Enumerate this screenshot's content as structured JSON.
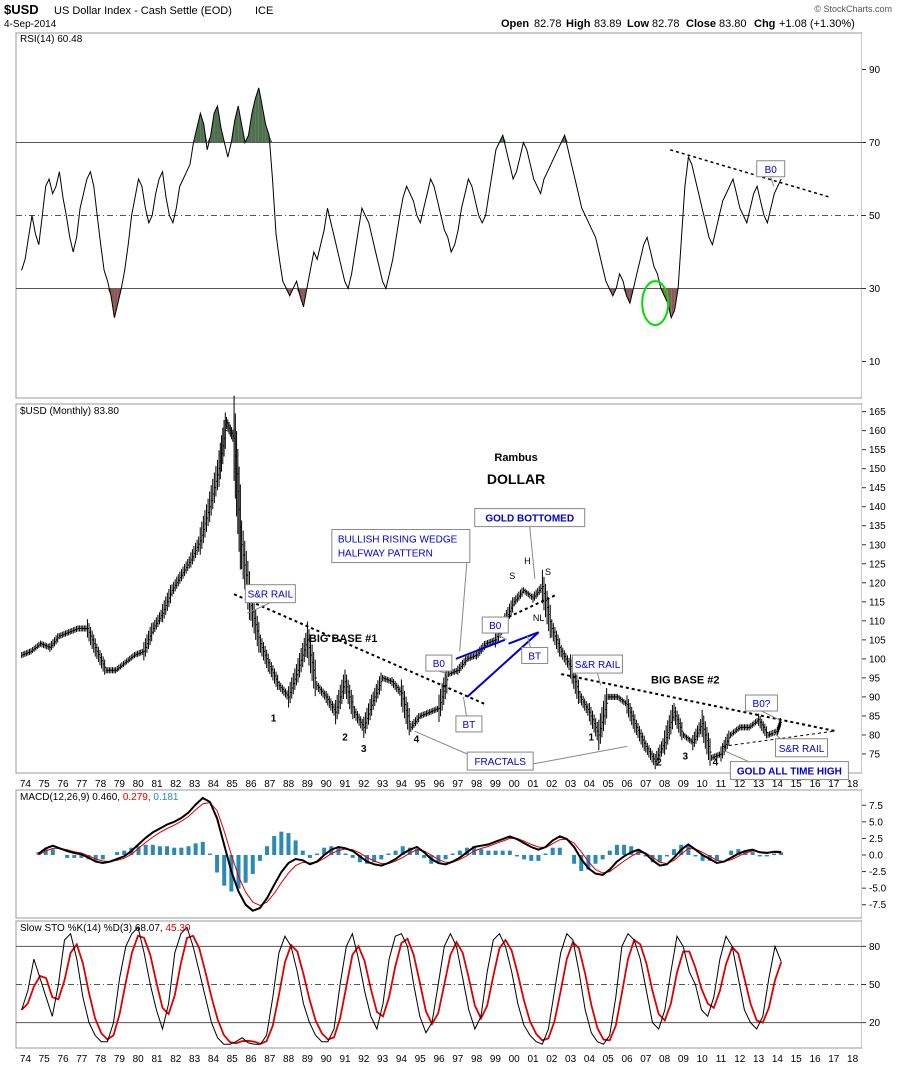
{
  "header": {
    "symbol": "$USD",
    "name": "US Dollar Index - Cash Settle (EOD)",
    "exchange": "ICE",
    "date": "4-Sep-2014",
    "open_label": "Open",
    "open": "82.78",
    "high_label": "High",
    "high": "83.89",
    "low_label": "Low",
    "low": "82.78",
    "close_label": "Close",
    "close": "83.80",
    "chg_label": "Chg",
    "chg": "+1.08 (+1.30%)",
    "watermark": "© StockCharts.com"
  },
  "colors": {
    "price": "#000000",
    "annotation_blue": "#0000cc",
    "rsi_overbought_fill": "#4f6f4f",
    "rsi_oversold_fill": "#8a5a5a",
    "macd_signal": "#dd0000",
    "macd_hist": "#2b89b5",
    "sto_d": "#dd0000",
    "highlight_circle": "#00dd00"
  },
  "chart_data": [
    {
      "type": "line",
      "title": "RSI(14) 60.48",
      "legend": "RSI(14) 60.48",
      "ylim": [
        0,
        100
      ],
      "yticks": [
        10,
        30,
        50,
        70,
        90
      ],
      "reference_lines": [
        30,
        50,
        70
      ],
      "x_start": 1974.3,
      "x_end": 2014.7,
      "values": [
        35,
        38,
        44,
        50,
        45,
        42,
        50,
        58,
        60,
        56,
        58,
        62,
        55,
        50,
        44,
        40,
        44,
        52,
        56,
        60,
        62,
        58,
        50,
        42,
        35,
        32,
        28,
        22,
        26,
        30,
        35,
        42,
        50,
        55,
        60,
        58,
        52,
        48,
        50,
        56,
        60,
        62,
        55,
        50,
        48,
        52,
        58,
        60,
        62,
        64,
        70,
        74,
        78,
        75,
        68,
        72,
        78,
        80,
        74,
        70,
        66,
        70,
        76,
        80,
        75,
        70,
        72,
        78,
        82,
        85,
        80,
        75,
        72,
        60,
        45,
        38,
        32,
        30,
        28,
        30,
        32,
        28,
        25,
        30,
        35,
        40,
        38,
        42,
        46,
        52,
        48,
        44,
        40,
        36,
        32,
        30,
        34,
        40,
        46,
        52,
        50,
        48,
        44,
        40,
        36,
        32,
        30,
        34,
        38,
        44,
        50,
        55,
        58,
        56,
        54,
        50,
        48,
        52,
        56,
        60,
        58,
        54,
        50,
        46,
        44,
        40,
        42,
        46,
        52,
        56,
        60,
        58,
        54,
        50,
        48,
        50,
        56,
        62,
        68,
        70,
        72,
        68,
        64,
        60,
        62,
        66,
        70,
        68,
        64,
        60,
        58,
        56,
        60,
        62,
        64,
        66,
        68,
        70,
        72,
        68,
        64,
        60,
        56,
        52,
        50,
        48,
        46,
        44,
        40,
        36,
        32,
        30,
        28,
        30,
        34,
        32,
        28,
        26,
        30,
        34,
        38,
        42,
        44,
        40,
        36,
        34,
        30,
        28,
        26,
        22,
        24,
        30,
        44,
        58,
        66,
        64,
        60,
        56,
        52,
        48,
        44,
        42,
        46,
        50,
        54,
        56,
        58,
        60,
        56,
        52,
        50,
        48,
        52,
        56,
        58,
        54,
        50,
        48,
        52,
        56,
        58,
        60
      ],
      "annotations": [
        "B0"
      ]
    },
    {
      "type": "line",
      "title": "$USD (Monthly) 83.80",
      "legend": "$USD (Monthly) 83.80",
      "ylim": [
        70,
        167
      ],
      "yticks": [
        75,
        80,
        85,
        90,
        95,
        100,
        105,
        110,
        115,
        120,
        125,
        130,
        135,
        140,
        145,
        150,
        155,
        160,
        165
      ],
      "x_categories": [
        "74",
        "75",
        "76",
        "77",
        "78",
        "79",
        "80",
        "81",
        "82",
        "83",
        "84",
        "85",
        "86",
        "87",
        "88",
        "89",
        "90",
        "91",
        "92",
        "93",
        "94",
        "95",
        "96",
        "97",
        "98",
        "99",
        "00",
        "01",
        "02",
        "03",
        "04",
        "05",
        "06",
        "07",
        "08",
        "09",
        "10",
        "11",
        "12",
        "13",
        "14",
        "15",
        "16",
        "17",
        "18"
      ],
      "series": [
        {
          "name": "$USD monthly close",
          "x": [
            1974.3,
            1974.8,
            1975.3,
            1975.8,
            1976.3,
            1976.8,
            1977.3,
            1977.8,
            1978.3,
            1978.8,
            1979.3,
            1979.8,
            1980.3,
            1980.8,
            1981.3,
            1981.8,
            1982.3,
            1982.8,
            1983.3,
            1983.8,
            1984.3,
            1984.8,
            1985.2,
            1985.6,
            1986.0,
            1986.5,
            1987.0,
            1987.5,
            1988.0,
            1988.5,
            1989.0,
            1989.5,
            1990.0,
            1990.5,
            1991.0,
            1991.5,
            1992.0,
            1992.5,
            1993.0,
            1993.5,
            1994.0,
            1994.5,
            1995.0,
            1995.5,
            1996.0,
            1996.5,
            1997.0,
            1997.5,
            1998.0,
            1998.5,
            1999.0,
            1999.5,
            2000.0,
            2000.5,
            2001.0,
            2001.5,
            2002.0,
            2002.5,
            2003.0,
            2003.5,
            2004.0,
            2004.5,
            2005.0,
            2005.5,
            2006.0,
            2006.5,
            2007.0,
            2007.5,
            2008.0,
            2008.5,
            2009.0,
            2009.5,
            2010.0,
            2010.5,
            2011.0,
            2011.5,
            2012.0,
            2012.5,
            2013.0,
            2013.5,
            2014.0,
            2014.5,
            2014.7
          ],
          "values": [
            101,
            102,
            104,
            103,
            106,
            107,
            108,
            108,
            102,
            97,
            97,
            99,
            101,
            102,
            108,
            112,
            118,
            122,
            126,
            131,
            140,
            150,
            162,
            158,
            130,
            114,
            104,
            98,
            93,
            90,
            97,
            105,
            93,
            90,
            86,
            94,
            86,
            82,
            89,
            95,
            94,
            91,
            82,
            85,
            86,
            87,
            96,
            97,
            100,
            101,
            104,
            105,
            110,
            115,
            118,
            116,
            119,
            108,
            102,
            98,
            90,
            86,
            80,
            90,
            90,
            88,
            82,
            77,
            73,
            78,
            86,
            80,
            78,
            83,
            74,
            75,
            80,
            82,
            82,
            84,
            80,
            81,
            83.8
          ]
        }
      ],
      "annotations": [
        {
          "text": "Rambus"
        },
        {
          "text": "DOLLAR"
        },
        {
          "text": "GOLD BOTTOMED"
        },
        {
          "text": "BULLISH RISING WEDGE"
        },
        {
          "text": "HALFWAY PATTERN"
        },
        {
          "text": "S&R RAIL"
        },
        {
          "text": "BIG BASE #1"
        },
        {
          "text": "B0"
        },
        {
          "text": "BT"
        },
        {
          "text": "NL"
        },
        {
          "text": "H"
        },
        {
          "text": "S"
        },
        {
          "text": "BIG BASE #2"
        },
        {
          "text": "B0?"
        },
        {
          "text": "FRACTALS"
        },
        {
          "text": "GOLD ALL TIME HIGH"
        },
        {
          "text": "1"
        },
        {
          "text": "2"
        },
        {
          "text": "3"
        },
        {
          "text": "4"
        }
      ]
    },
    {
      "type": "line",
      "title": "MACD(12,26,9)",
      "legend": "MACD(12,26,9) 0.460, 0.279, 0.181",
      "legend_parts": [
        "MACD(12,26,9)",
        "0.460,",
        "0.279,",
        "0.181"
      ],
      "ylim": [
        -9.5,
        9.8
      ],
      "yticks": [
        -7.5,
        -5.0,
        -2.5,
        0.0,
        2.5,
        5.0,
        7.5
      ],
      "ytick_labels": [
        "-7.5",
        "-5.0",
        "-2.5",
        "0.0",
        "2.5",
        "5.0",
        "7.5"
      ],
      "x_start": 1975.2,
      "x_end": 2014.7,
      "macd": [
        0.2,
        1.0,
        1.4,
        1.0,
        0.6,
        0.3,
        0.1,
        -0.4,
        -1.0,
        -1.2,
        -1.0,
        -0.6,
        -0.2,
        0.6,
        1.6,
        2.6,
        3.4,
        4.0,
        4.6,
        5.0,
        5.6,
        6.4,
        7.6,
        8.6,
        8.0,
        5.5,
        1.5,
        -2.5,
        -5.5,
        -7.5,
        -8.4,
        -8.0,
        -6.5,
        -4.5,
        -2.6,
        -1.2,
        -0.6,
        -0.8,
        -1.4,
        -1.0,
        0.0,
        0.8,
        1.2,
        1.0,
        0.6,
        -0.2,
        -1.0,
        -1.4,
        -1.6,
        -1.2,
        -0.6,
        0.2,
        0.8,
        1.2,
        0.4,
        -0.6,
        -1.2,
        -1.4,
        -1.0,
        -0.4,
        0.4,
        1.2,
        1.4,
        1.6,
        2.0,
        2.4,
        2.8,
        2.4,
        1.8,
        1.2,
        0.8,
        1.2,
        2.2,
        2.8,
        2.4,
        1.2,
        -0.6,
        -2.0,
        -2.8,
        -3.0,
        -2.2,
        -1.0,
        -0.2,
        0.4,
        0.8,
        0.2,
        -0.8,
        -1.6,
        -1.4,
        -0.4,
        0.8,
        1.6,
        0.8,
        0.0,
        -0.6,
        -1.2,
        -1.0,
        -0.4,
        0.2,
        0.6,
        0.8,
        0.4,
        0.3,
        0.5,
        0.46
      ],
      "signal": [
        0.0,
        0.6,
        1.0,
        1.0,
        0.8,
        0.5,
        0.3,
        -0.1,
        -0.6,
        -0.9,
        -1.0,
        -0.8,
        -0.5,
        0.1,
        1.0,
        1.9,
        2.7,
        3.4,
        4.0,
        4.5,
        5.1,
        5.8,
        6.8,
        7.7,
        7.9,
        6.7,
        3.6,
        0.0,
        -3.2,
        -5.6,
        -7.1,
        -7.6,
        -7.1,
        -5.8,
        -4.2,
        -2.7,
        -1.6,
        -1.1,
        -1.2,
        -1.1,
        -0.5,
        0.2,
        0.7,
        0.9,
        0.8,
        0.3,
        -0.4,
        -0.9,
        -1.3,
        -1.3,
        -0.9,
        -0.4,
        0.3,
        0.8,
        0.6,
        0.0,
        -0.7,
        -1.1,
        -1.1,
        -0.7,
        -0.1,
        0.6,
        1.0,
        1.3,
        1.7,
        2.1,
        2.5,
        2.5,
        2.1,
        1.6,
        1.2,
        1.1,
        1.7,
        2.3,
        2.4,
        1.8,
        0.5,
        -1.0,
        -2.2,
        -2.7,
        -2.5,
        -1.7,
        -0.9,
        -0.2,
        0.4,
        0.3,
        -0.3,
        -1.1,
        -1.3,
        -0.8,
        0.1,
        1.0,
        0.9,
        0.4,
        -0.2,
        -0.8,
        -1.0,
        -0.7,
        -0.2,
        0.3,
        0.6,
        0.5,
        0.4,
        0.4,
        0.28
      ]
    },
    {
      "type": "line",
      "title": "Slow STO %K(14) %D(3)",
      "legend": "Slow STO %K(14) %D(3) 68.07, 45.30",
      "legend_parts": [
        "Slow STO %K(14) %D(3)",
        "68.07,",
        "45.30"
      ],
      "ylim": [
        0,
        100
      ],
      "yticks": [
        20,
        50,
        80
      ],
      "reference_lines": [
        20,
        50,
        80
      ],
      "x_start": 1974.3,
      "x_end": 2014.7,
      "k": [
        30,
        45,
        70,
        55,
        40,
        25,
        50,
        85,
        90,
        70,
        40,
        20,
        10,
        5,
        5,
        20,
        55,
        80,
        90,
        95,
        75,
        50,
        30,
        15,
        35,
        75,
        90,
        95,
        80,
        60,
        40,
        20,
        8,
        3,
        3,
        5,
        8,
        4,
        3,
        3,
        10,
        40,
        75,
        88,
        80,
        60,
        35,
        20,
        10,
        5,
        5,
        15,
        50,
        80,
        90,
        70,
        45,
        25,
        15,
        35,
        70,
        88,
        90,
        80,
        50,
        25,
        12,
        20,
        50,
        80,
        90,
        80,
        55,
        30,
        15,
        25,
        60,
        85,
        90,
        80,
        60,
        35,
        18,
        10,
        5,
        3,
        15,
        45,
        75,
        90,
        85,
        60,
        30,
        12,
        5,
        3,
        10,
        40,
        80,
        90,
        85,
        70,
        45,
        20,
        15,
        30,
        60,
        88,
        80,
        60,
        50,
        30,
        25,
        40,
        70,
        88,
        80,
        55,
        30,
        20,
        15,
        25,
        55,
        80,
        68
      ]
    }
  ]
}
